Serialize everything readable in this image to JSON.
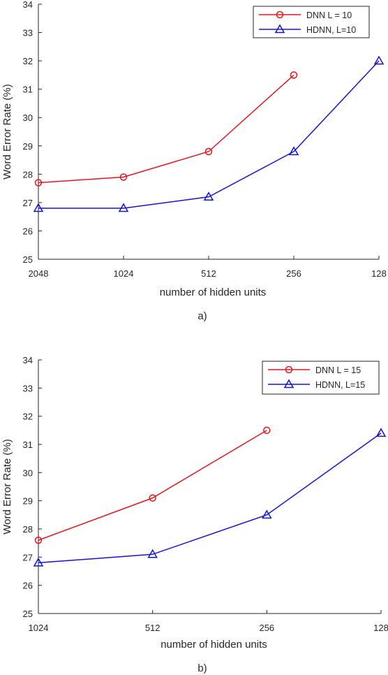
{
  "chart_data": [
    {
      "type": "line",
      "caption": "a)",
      "xlabel": "number of hidden units",
      "ylabel": "Word Error Rate (%)",
      "categories": [
        "2048",
        "1024",
        "512",
        "256",
        "128"
      ],
      "ylim": [
        25,
        34
      ],
      "yticks": [
        25,
        26,
        27,
        28,
        29,
        30,
        31,
        32,
        33,
        34
      ],
      "legend_position": "top-right",
      "grid": false,
      "series": [
        {
          "name": "DNN L = 10",
          "color": "#e8141b",
          "marker": "circle",
          "values": [
            27.7,
            27.9,
            28.8,
            31.5,
            null
          ]
        },
        {
          "name": "HDNN, L=10",
          "color": "#1414d8",
          "marker": "triangle",
          "values": [
            26.8,
            26.8,
            27.2,
            28.8,
            32.0
          ]
        }
      ]
    },
    {
      "type": "line",
      "caption": "b)",
      "xlabel": "number of hidden units",
      "ylabel": "Word Error Rate (%)",
      "categories": [
        "1024",
        "512",
        "256",
        "128"
      ],
      "ylim": [
        25,
        34
      ],
      "yticks": [
        25,
        26,
        27,
        28,
        29,
        30,
        31,
        32,
        33,
        34
      ],
      "legend_position": "top-right",
      "grid": false,
      "series": [
        {
          "name": "DNN L = 15",
          "color": "#e8141b",
          "marker": "circle",
          "values": [
            27.6,
            29.1,
            31.5,
            null
          ]
        },
        {
          "name": "HDNN, L=15",
          "color": "#1414d8",
          "marker": "triangle",
          "values": [
            26.8,
            27.1,
            28.5,
            31.4
          ]
        }
      ]
    }
  ]
}
